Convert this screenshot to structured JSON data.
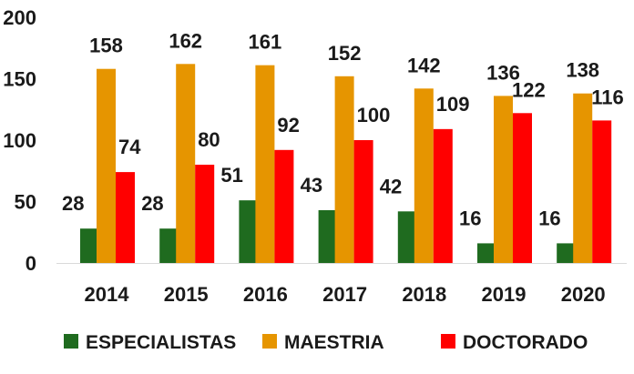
{
  "chart_data": {
    "type": "bar",
    "title": "",
    "xlabel": "",
    "ylabel": "",
    "categories": [
      "2014",
      "2015",
      "2016",
      "2017",
      "2018",
      "2019",
      "2020"
    ],
    "ylim": [
      0,
      200
    ],
    "yticks": [
      0,
      50,
      100,
      150,
      200
    ],
    "grid": false,
    "legend_position": "bottom",
    "series": [
      {
        "name": "ESPECIALISTAS",
        "color": "#1f6b1f",
        "values": [
          28,
          28,
          51,
          43,
          42,
          16,
          16
        ]
      },
      {
        "name": "MAESTRIA",
        "color": "#e69500",
        "values": [
          158,
          162,
          161,
          152,
          142,
          136,
          138
        ]
      },
      {
        "name": "DOCTORADO",
        "color": "#ff0000",
        "values": [
          74,
          80,
          92,
          100,
          109,
          122,
          116
        ]
      }
    ]
  }
}
